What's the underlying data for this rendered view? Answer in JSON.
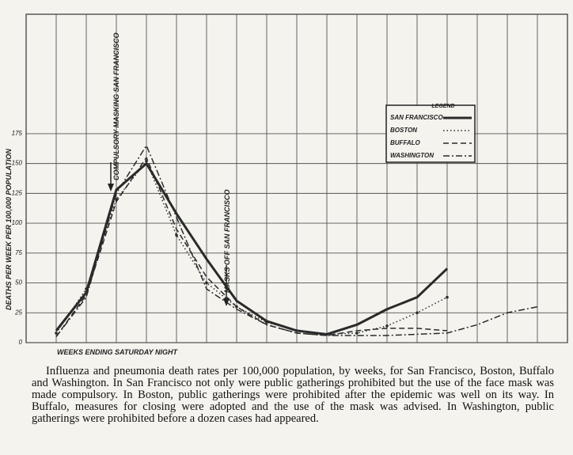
{
  "chart_data": {
    "type": "line",
    "y_label": "DEATHS PER WEEK PER 100,000 POPULATION",
    "x_label": "WEEKS ENDING SATURDAY NIGHT",
    "annotations": [
      "COMPULSORY MASKING SAN FRANCISCO",
      "MASKS OFF SAN FRANCISCO"
    ],
    "legend_title": "LEGEND",
    "legend_position": "upper right",
    "categories": [
      null,
      null,
      null,
      null,
      null,
      null,
      null,
      null,
      null,
      null,
      null,
      null,
      null,
      null,
      null,
      null,
      null
    ],
    "series": [
      {
        "name": "SAN FRANCISCO",
        "color": "#2a2a2a",
        "style": "solid",
        "linewidth": 3,
        "values": [
          10,
          42,
          128,
          150,
          108,
          70,
          35,
          18,
          10,
          7,
          15,
          28,
          38,
          62,
          null,
          null,
          null
        ]
      },
      {
        "name": "BOSTON",
        "color": "#2a2a2a",
        "style": "dotted",
        "linewidth": 1.5,
        "values": [
          8,
          45,
          120,
          152,
          90,
          50,
          30,
          17,
          10,
          7,
          8,
          14,
          25,
          38,
          null,
          null,
          null
        ]
      },
      {
        "name": "BUFFALO",
        "color": "#2a2a2a",
        "style": "dashed",
        "linewidth": 1.5,
        "values": [
          5,
          40,
          118,
          155,
          95,
          55,
          30,
          15,
          8,
          6,
          10,
          12,
          12,
          10,
          null,
          null,
          null
        ]
      },
      {
        "name": "WASHINGTON",
        "color": "#2a2a2a",
        "style": "dashdot",
        "linewidth": 1.5,
        "values": [
          5,
          38,
          125,
          165,
          105,
          45,
          28,
          15,
          8,
          6,
          6,
          6,
          7,
          8,
          15,
          25,
          30
        ]
      }
    ],
    "ylim": [
      0,
      275
    ],
    "yticks": [
      0,
      25,
      50,
      75,
      100,
      125,
      150,
      175
    ],
    "grid": true
  },
  "caption": "Influenza and pneumonia death rates per 100,000 population, by weeks, for San Francisco, Boston, Buffalo and Washington. In San Francisco not only were public gatherings prohibited but the use of the face mask was made compulsory. In Boston, public gatherings were prohibited after the epidemic was well on its way. In Buffalo, measures for closing were adopted and the use of the mask was advised. In Washington, public gatherings were prohibited before a dozen cases had appeared."
}
